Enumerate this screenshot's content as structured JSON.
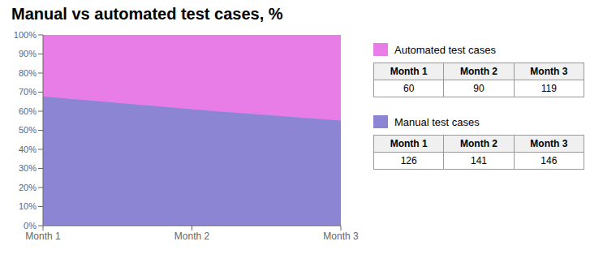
{
  "chart_data": {
    "type": "area",
    "title": "Manual vs automated test cases, %",
    "categories": [
      "Month 1",
      "Month 2",
      "Month 3"
    ],
    "stacked": true,
    "grid": false,
    "legend": "right",
    "ylim": [
      0,
      100
    ],
    "yticks": [
      {
        "value": 0,
        "label": "0%"
      },
      {
        "value": 10,
        "label": "10%"
      },
      {
        "value": 20,
        "label": "20%"
      },
      {
        "value": 30,
        "label": "30%"
      },
      {
        "value": 40,
        "label": "40%"
      },
      {
        "value": 50,
        "label": "50%"
      },
      {
        "value": 60,
        "label": "60%"
      },
      {
        "value": 70,
        "label": "70%"
      },
      {
        "value": 80,
        "label": "80%"
      },
      {
        "value": 90,
        "label": "90%"
      },
      {
        "value": 100,
        "label": "100%"
      }
    ],
    "series": [
      {
        "name": "Manual test cases",
        "color": "#8b85d4",
        "values": [
          67.74193548387096,
          61.03896103896104,
          55.09433962264151
        ],
        "counts": [
          126,
          141,
          146
        ]
      },
      {
        "name": "Automated test cases",
        "color": "#e87de8",
        "values": [
          32.25806451612903,
          38.96103896103896,
          44.90566037735849
        ],
        "counts": [
          60,
          90,
          119
        ]
      }
    ]
  }
}
